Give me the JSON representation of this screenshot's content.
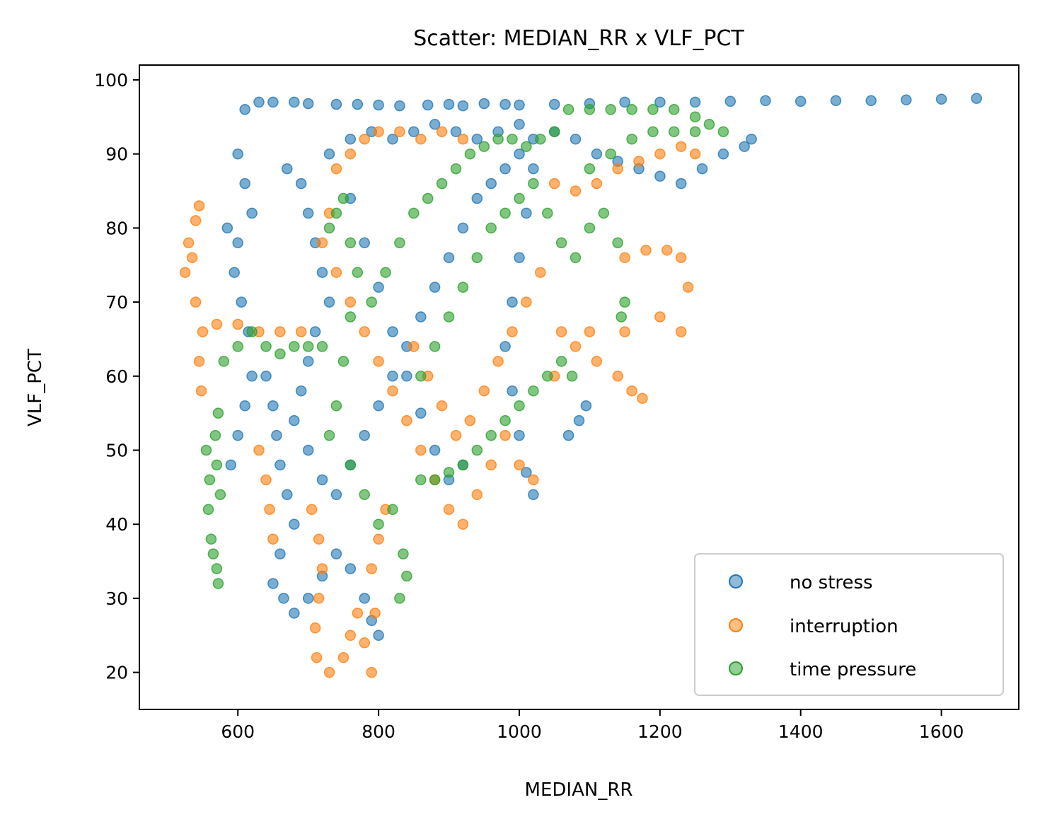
{
  "chart_data": {
    "type": "scatter",
    "title": "Scatter: MEDIAN_RR x VLF_PCT",
    "xlabel": "MEDIAN_RR",
    "ylabel": "VLF_PCT",
    "xlim": [
      460,
      1710
    ],
    "ylim": [
      15,
      102
    ],
    "xticks": [
      600,
      800,
      1000,
      1200,
      1400,
      1600
    ],
    "yticks": [
      20,
      30,
      40,
      50,
      60,
      70,
      80,
      90,
      100
    ],
    "grid": false,
    "legend_position": "bottom-right",
    "series": [
      {
        "name": "no stress",
        "color": "#1f77b4",
        "points": [
          [
            610,
            96
          ],
          [
            630,
            97
          ],
          [
            650,
            97
          ],
          [
            680,
            97
          ],
          [
            700,
            96.8
          ],
          [
            740,
            96.7
          ],
          [
            770,
            96.7
          ],
          [
            800,
            96.6
          ],
          [
            830,
            96.5
          ],
          [
            870,
            96.6
          ],
          [
            900,
            96.7
          ],
          [
            920,
            96.5
          ],
          [
            950,
            96.8
          ],
          [
            980,
            96.7
          ],
          [
            1000,
            96.6
          ],
          [
            1050,
            96.7
          ],
          [
            1100,
            96.8
          ],
          [
            1150,
            97
          ],
          [
            1200,
            97
          ],
          [
            1250,
            97
          ],
          [
            1300,
            97.1
          ],
          [
            1350,
            97.2
          ],
          [
            1400,
            97.1
          ],
          [
            1450,
            97.2
          ],
          [
            1500,
            97.2
          ],
          [
            1550,
            97.3
          ],
          [
            1600,
            97.4
          ],
          [
            1650,
            97.5
          ],
          [
            600,
            90
          ],
          [
            610,
            86
          ],
          [
            620,
            82
          ],
          [
            600,
            78
          ],
          [
            585,
            80
          ],
          [
            595,
            74
          ],
          [
            605,
            70
          ],
          [
            615,
            66
          ],
          [
            620,
            60
          ],
          [
            610,
            56
          ],
          [
            600,
            52
          ],
          [
            590,
            48
          ],
          [
            640,
            60
          ],
          [
            650,
            56
          ],
          [
            655,
            52
          ],
          [
            660,
            48
          ],
          [
            670,
            44
          ],
          [
            680,
            40
          ],
          [
            660,
            36
          ],
          [
            650,
            32
          ],
          [
            665,
            30
          ],
          [
            680,
            28
          ],
          [
            700,
            30
          ],
          [
            720,
            33
          ],
          [
            740,
            36
          ],
          [
            760,
            34
          ],
          [
            780,
            30
          ],
          [
            790,
            27
          ],
          [
            800,
            25
          ],
          [
            670,
            88
          ],
          [
            690,
            86
          ],
          [
            700,
            82
          ],
          [
            710,
            78
          ],
          [
            720,
            74
          ],
          [
            730,
            70
          ],
          [
            710,
            66
          ],
          [
            700,
            62
          ],
          [
            690,
            58
          ],
          [
            680,
            54
          ],
          [
            700,
            50
          ],
          [
            720,
            46
          ],
          [
            740,
            44
          ],
          [
            760,
            48
          ],
          [
            780,
            52
          ],
          [
            800,
            56
          ],
          [
            820,
            60
          ],
          [
            840,
            64
          ],
          [
            860,
            68
          ],
          [
            880,
            72
          ],
          [
            900,
            76
          ],
          [
            920,
            80
          ],
          [
            940,
            84
          ],
          [
            960,
            86
          ],
          [
            980,
            88
          ],
          [
            1000,
            90
          ],
          [
            1020,
            92
          ],
          [
            1050,
            93
          ],
          [
            1080,
            92
          ],
          [
            1110,
            90
          ],
          [
            1140,
            89
          ],
          [
            1170,
            88
          ],
          [
            1200,
            87
          ],
          [
            1230,
            86
          ],
          [
            1260,
            88
          ],
          [
            1290,
            90
          ],
          [
            1320,
            91
          ],
          [
            1330,
            92
          ],
          [
            730,
            90
          ],
          [
            760,
            92
          ],
          [
            790,
            93
          ],
          [
            820,
            92
          ],
          [
            850,
            93
          ],
          [
            880,
            94
          ],
          [
            910,
            93
          ],
          [
            940,
            92
          ],
          [
            970,
            93
          ],
          [
            1000,
            94
          ],
          [
            1020,
            88
          ],
          [
            1010,
            82
          ],
          [
            1000,
            76
          ],
          [
            990,
            70
          ],
          [
            980,
            64
          ],
          [
            990,
            58
          ],
          [
            1000,
            52
          ],
          [
            1010,
            47
          ],
          [
            1020,
            44
          ],
          [
            1070,
            52
          ],
          [
            1085,
            54
          ],
          [
            1095,
            56
          ],
          [
            900,
            46
          ],
          [
            920,
            48
          ],
          [
            880,
            50
          ],
          [
            860,
            55
          ],
          [
            840,
            60
          ],
          [
            820,
            66
          ],
          [
            800,
            72
          ],
          [
            780,
            78
          ],
          [
            760,
            84
          ]
        ]
      },
      {
        "name": "interruption",
        "color": "#ff7f0e",
        "points": [
          [
            525,
            74
          ],
          [
            530,
            78
          ],
          [
            540,
            81
          ],
          [
            545,
            83
          ],
          [
            535,
            76
          ],
          [
            540,
            70
          ],
          [
            550,
            66
          ],
          [
            545,
            62
          ],
          [
            548,
            58
          ],
          [
            570,
            67
          ],
          [
            600,
            67
          ],
          [
            630,
            66
          ],
          [
            660,
            66
          ],
          [
            690,
            66
          ],
          [
            630,
            50
          ],
          [
            640,
            46
          ],
          [
            645,
            42
          ],
          [
            650,
            38
          ],
          [
            705,
            42
          ],
          [
            715,
            38
          ],
          [
            720,
            34
          ],
          [
            715,
            30
          ],
          [
            710,
            26
          ],
          [
            712,
            22
          ],
          [
            730,
            20
          ],
          [
            750,
            22
          ],
          [
            760,
            25
          ],
          [
            770,
            28
          ],
          [
            780,
            24
          ],
          [
            790,
            20
          ],
          [
            795,
            28
          ],
          [
            790,
            34
          ],
          [
            800,
            38
          ],
          [
            810,
            42
          ],
          [
            740,
            88
          ],
          [
            760,
            90
          ],
          [
            780,
            92
          ],
          [
            800,
            93
          ],
          [
            830,
            93
          ],
          [
            860,
            92
          ],
          [
            890,
            93
          ],
          [
            920,
            92
          ],
          [
            730,
            82
          ],
          [
            720,
            78
          ],
          [
            740,
            74
          ],
          [
            760,
            70
          ],
          [
            780,
            66
          ],
          [
            800,
            62
          ],
          [
            820,
            58
          ],
          [
            840,
            54
          ],
          [
            860,
            50
          ],
          [
            880,
            46
          ],
          [
            900,
            42
          ],
          [
            920,
            40
          ],
          [
            940,
            44
          ],
          [
            960,
            48
          ],
          [
            980,
            52
          ],
          [
            1000,
            48
          ],
          [
            1020,
            46
          ],
          [
            1050,
            60
          ],
          [
            1080,
            64
          ],
          [
            1110,
            62
          ],
          [
            1140,
            60
          ],
          [
            1160,
            58
          ],
          [
            1175,
            57
          ],
          [
            1060,
            66
          ],
          [
            1100,
            66
          ],
          [
            1150,
            66
          ],
          [
            1200,
            68
          ],
          [
            1230,
            66
          ],
          [
            1150,
            76
          ],
          [
            1180,
            77
          ],
          [
            1210,
            77
          ],
          [
            1230,
            76
          ],
          [
            1240,
            72
          ],
          [
            1050,
            86
          ],
          [
            1080,
            85
          ],
          [
            1110,
            86
          ],
          [
            1140,
            88
          ],
          [
            1170,
            89
          ],
          [
            1200,
            90
          ],
          [
            1230,
            91
          ],
          [
            1250,
            90
          ],
          [
            850,
            64
          ],
          [
            870,
            60
          ],
          [
            890,
            56
          ],
          [
            910,
            52
          ],
          [
            930,
            54
          ],
          [
            950,
            58
          ],
          [
            970,
            62
          ],
          [
            990,
            66
          ],
          [
            1010,
            70
          ],
          [
            1030,
            74
          ]
        ]
      },
      {
        "name": "time pressure",
        "color": "#2ca02c",
        "points": [
          [
            555,
            50
          ],
          [
            560,
            46
          ],
          [
            558,
            42
          ],
          [
            562,
            38
          ],
          [
            565,
            36
          ],
          [
            570,
            34
          ],
          [
            572,
            32
          ],
          [
            575,
            44
          ],
          [
            570,
            48
          ],
          [
            568,
            52
          ],
          [
            572,
            55
          ],
          [
            580,
            62
          ],
          [
            600,
            64
          ],
          [
            620,
            66
          ],
          [
            640,
            64
          ],
          [
            660,
            63
          ],
          [
            680,
            64
          ],
          [
            700,
            64
          ],
          [
            720,
            64
          ],
          [
            730,
            80
          ],
          [
            740,
            82
          ],
          [
            750,
            84
          ],
          [
            760,
            78
          ],
          [
            770,
            74
          ],
          [
            760,
            68
          ],
          [
            750,
            62
          ],
          [
            740,
            56
          ],
          [
            730,
            52
          ],
          [
            760,
            48
          ],
          [
            780,
            44
          ],
          [
            800,
            40
          ],
          [
            820,
            42
          ],
          [
            830,
            30
          ],
          [
            840,
            33
          ],
          [
            835,
            36
          ],
          [
            790,
            70
          ],
          [
            810,
            74
          ],
          [
            830,
            78
          ],
          [
            850,
            82
          ],
          [
            870,
            84
          ],
          [
            890,
            86
          ],
          [
            910,
            88
          ],
          [
            930,
            90
          ],
          [
            950,
            91
          ],
          [
            970,
            92
          ],
          [
            990,
            92
          ],
          [
            1010,
            91
          ],
          [
            1030,
            92
          ],
          [
            1050,
            93
          ],
          [
            860,
            46
          ],
          [
            880,
            46
          ],
          [
            900,
            47
          ],
          [
            920,
            48
          ],
          [
            940,
            50
          ],
          [
            960,
            52
          ],
          [
            980,
            54
          ],
          [
            1000,
            56
          ],
          [
            1020,
            58
          ],
          [
            1040,
            60
          ],
          [
            1060,
            62
          ],
          [
            1075,
            60
          ],
          [
            860,
            60
          ],
          [
            880,
            64
          ],
          [
            900,
            68
          ],
          [
            920,
            72
          ],
          [
            940,
            76
          ],
          [
            960,
            80
          ],
          [
            980,
            82
          ],
          [
            1000,
            84
          ],
          [
            1020,
            86
          ],
          [
            1040,
            82
          ],
          [
            1060,
            78
          ],
          [
            1080,
            76
          ],
          [
            1100,
            80
          ],
          [
            1120,
            82
          ],
          [
            1140,
            78
          ],
          [
            1150,
            70
          ],
          [
            1145,
            68
          ],
          [
            1070,
            96
          ],
          [
            1100,
            96
          ],
          [
            1130,
            96
          ],
          [
            1160,
            96
          ],
          [
            1190,
            96
          ],
          [
            1220,
            96
          ],
          [
            1250,
            95
          ],
          [
            1270,
            94
          ],
          [
            1290,
            93
          ],
          [
            1100,
            88
          ],
          [
            1130,
            90
          ],
          [
            1160,
            92
          ],
          [
            1190,
            93
          ],
          [
            1220,
            93
          ],
          [
            1250,
            93
          ]
        ]
      }
    ]
  }
}
